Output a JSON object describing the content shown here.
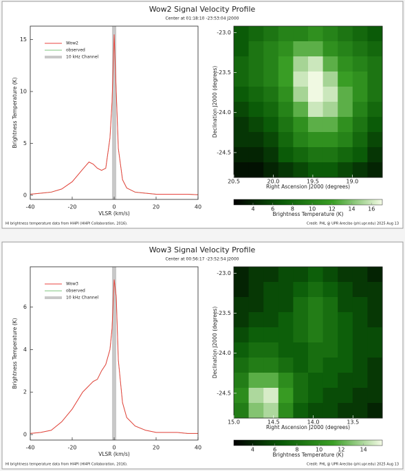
{
  "panels": [
    {
      "title": "Wow2 Signal Velocity Profile",
      "subtitle": "Center at 01:18:10 -23:53:04 J2000",
      "note": "HI brightness temperature data from HI4PI (HI4PI Collaboration, 2016).",
      "credit": "Credit: PHL @ UPR Arecibo (phl.upr.edu) 2025 Aug 13"
    },
    {
      "title": "Wow3 Signal Velocity Profile",
      "subtitle": "Center at 00:56:17 -23:52:54 J2000",
      "note": "HI brightness temperature data from HI4PI (HI4PI Collaboration, 2016).",
      "credit": "Credit: PHL @ UPR Arecibo (phl.upr.edu) 2025 Aug 13"
    }
  ],
  "chart_data": [
    {
      "type": "line",
      "xlabel": "VLSR (km/s)",
      "ylabel": "Brightness Temperature (K)",
      "x": [
        -40,
        -35,
        -30,
        -25,
        -20,
        -15,
        -12,
        -10,
        -8,
        -6,
        -4,
        -2,
        -1,
        0,
        1,
        2,
        4,
        6,
        10,
        15,
        20,
        25,
        30,
        35,
        40
      ],
      "series": [
        {
          "name": "Wow2",
          "color": "#e8413c",
          "values": [
            0.1,
            0.2,
            0.3,
            0.6,
            1.3,
            2.5,
            3.2,
            3.0,
            2.6,
            2.4,
            2.6,
            5.5,
            9,
            15.5,
            10,
            4.5,
            1.5,
            0.7,
            0.3,
            0.2,
            0.1,
            0.1,
            0.1,
            0.1,
            0.05
          ]
        },
        {
          "name": "observed",
          "color": "#7cc47c",
          "values": [
            0.1,
            0.2,
            0.3,
            0.6,
            1.3,
            2.5,
            3.2,
            3.0,
            2.6,
            2.4,
            2.6,
            5.5,
            9,
            15.5,
            10,
            4.5,
            1.5,
            0.7,
            0.3,
            0.2,
            0.1,
            0.1,
            0.1,
            0.1,
            0.05
          ]
        }
      ],
      "band": {
        "name": "10 kHz Channel",
        "color": "#c8c8c8",
        "xlim": [
          -1,
          1
        ]
      },
      "xlim": [
        -40,
        40
      ],
      "xticks": [
        -40,
        -20,
        0,
        20,
        40
      ],
      "ylim": [
        -0.4,
        16.3
      ],
      "yticks": [
        0,
        5,
        10,
        15
      ]
    },
    {
      "type": "heatmap",
      "xlabel": "Right Ascension J2000 (degrees)",
      "ylabel": "Declination J2000 (degrees)",
      "xlim": [
        20.5,
        18.62
      ],
      "xticks": [
        20.5,
        {
          "value": 20,
          "label": "20.0"
        },
        19.5,
        {
          "value": 19,
          "label": "19.0"
        }
      ],
      "ylim": [
        -24.81,
        -22.92
      ],
      "yticks": [
        {
          "value": -23,
          "label": "-23.0"
        },
        -23.5,
        {
          "value": -24,
          "label": "-24.0"
        },
        -24.5
      ],
      "colormap": [
        "#000000",
        "#0b5c08",
        "#3a9e25",
        "#f4fbe6"
      ],
      "z": [
        [
          7,
          8,
          9,
          10,
          10,
          11,
          10,
          9,
          8,
          7
        ],
        [
          7,
          9,
          10,
          11,
          13,
          13,
          11,
          10,
          9,
          8
        ],
        [
          8,
          9,
          10,
          12,
          15,
          16,
          13,
          11,
          10,
          9
        ],
        [
          8,
          9,
          10,
          12,
          16,
          17,
          15,
          12,
          11,
          9
        ],
        [
          7,
          8,
          9,
          11,
          15,
          17,
          16,
          13,
          11,
          9
        ],
        [
          6,
          7,
          8,
          10,
          13,
          16,
          15,
          13,
          10,
          8
        ],
        [
          5,
          6,
          7,
          9,
          11,
          13,
          13,
          11,
          9,
          7
        ],
        [
          5,
          5,
          6,
          8,
          10,
          11,
          11,
          10,
          8,
          6
        ],
        [
          4,
          4,
          5,
          7,
          8,
          9,
          9,
          8,
          7,
          5
        ],
        [
          3,
          3,
          4,
          5,
          6,
          7,
          7,
          6,
          5,
          4
        ]
      ],
      "colorbar": {
        "label": "Brightness Temperature (K)",
        "lim": [
          2.05,
          17.1
        ],
        "ticks": [
          4,
          6,
          8,
          10,
          12,
          14,
          16
        ]
      }
    },
    {
      "type": "line",
      "xlabel": "VLSR (km/s)",
      "ylabel": "Brightness Temperature (K)",
      "x": [
        -40,
        -35,
        -30,
        -25,
        -20,
        -15,
        -12,
        -10,
        -8,
        -6,
        -4,
        -2,
        -1,
        0,
        1,
        2,
        4,
        6,
        10,
        15,
        20,
        25,
        30,
        35,
        40
      ],
      "series": [
        {
          "name": "Wow3",
          "color": "#e8413c",
          "values": [
            0.05,
            0.1,
            0.2,
            0.6,
            1.2,
            2.0,
            2.3,
            2.5,
            2.6,
            3.0,
            3.3,
            4.0,
            5.0,
            7.3,
            6.5,
            3.5,
            1.5,
            0.8,
            0.4,
            0.2,
            0.1,
            0.1,
            0.1,
            0.05,
            0.05
          ]
        },
        {
          "name": "observed",
          "color": "#7cc47c",
          "values": [
            0.05,
            0.1,
            0.2,
            0.6,
            1.2,
            2.0,
            2.3,
            2.5,
            2.6,
            3.0,
            3.3,
            4.0,
            5.0,
            7.3,
            6.5,
            3.5,
            1.5,
            0.8,
            0.4,
            0.2,
            0.1,
            0.1,
            0.1,
            0.05,
            0.05
          ]
        }
      ],
      "band": {
        "name": "10 kHz Channel",
        "color": "#c8c8c8",
        "xlim": [
          -1,
          1
        ]
      },
      "xlim": [
        -40,
        40
      ],
      "xticks": [
        -40,
        -20,
        0,
        20,
        40
      ],
      "ylim": [
        -0.26,
        7.9
      ],
      "yticks": [
        0,
        2,
        4,
        6
      ]
    },
    {
      "type": "heatmap",
      "xlabel": "Right Ascension J2000 (degrees)",
      "ylabel": "Declination J2000 (degrees)",
      "xlim": [
        15.0,
        13.13
      ],
      "xticks": [
        {
          "value": 15,
          "label": "15.0"
        },
        14.5,
        {
          "value": 14,
          "label": "14.0"
        },
        13.5
      ],
      "ylim": [
        -24.81,
        -22.92
      ],
      "yticks": [
        {
          "value": -23,
          "label": "-23.0"
        },
        -23.5,
        {
          "value": -24,
          "label": "-24.0"
        },
        -24.5
      ],
      "colormap": [
        "#000000",
        "#0b5c08",
        "#3a9e25",
        "#f4fbe6"
      ],
      "z": [
        [
          4,
          5,
          5,
          6,
          6,
          7,
          6,
          5,
          5,
          4
        ],
        [
          4,
          5,
          6,
          6,
          7,
          8,
          7,
          6,
          5,
          5
        ],
        [
          5,
          5,
          6,
          6,
          8,
          9,
          8,
          6,
          6,
          5
        ],
        [
          5,
          6,
          6,
          7,
          8,
          9,
          8,
          7,
          6,
          5
        ],
        [
          6,
          7,
          7,
          7,
          8,
          9,
          8,
          7,
          6,
          6
        ],
        [
          7,
          8,
          8,
          7,
          7,
          8,
          8,
          7,
          6,
          6
        ],
        [
          8,
          9,
          9,
          8,
          7,
          8,
          7,
          7,
          6,
          5
        ],
        [
          9,
          12,
          12,
          10,
          8,
          7,
          7,
          6,
          6,
          5
        ],
        [
          10,
          14,
          15,
          11,
          8,
          7,
          6,
          6,
          5,
          5
        ],
        [
          9,
          13,
          14,
          10,
          7,
          6,
          6,
          5,
          5,
          4
        ]
      ],
      "colorbar": {
        "label": "Brightness Temperature (K)",
        "lim": [
          2.3,
          15.7
        ],
        "ticks": [
          4,
          6,
          8,
          10,
          12,
          14
        ]
      }
    }
  ]
}
